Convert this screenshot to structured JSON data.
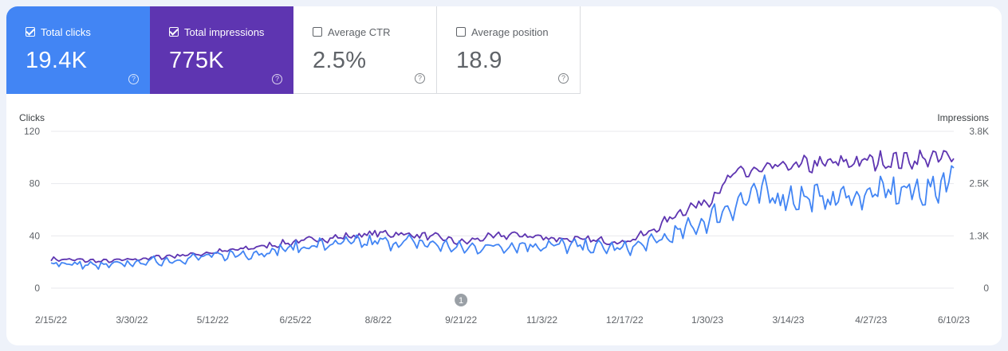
{
  "metrics": [
    {
      "label": "Total clicks",
      "value": "19.4K",
      "checked": true,
      "style": "on-clicks"
    },
    {
      "label": "Total impressions",
      "value": "775K",
      "checked": true,
      "style": "on-impr"
    },
    {
      "label": "Average CTR",
      "value": "2.5%",
      "checked": false,
      "style": "off"
    },
    {
      "label": "Average position",
      "value": "18.9",
      "checked": false,
      "style": "off"
    }
  ],
  "help_glyph": "?",
  "colors": {
    "clicks": "#4285f4",
    "impressions": "#5e35b1"
  },
  "chart_data": {
    "type": "line",
    "x_range": [
      "2/15/22",
      "6/10/23"
    ],
    "x_tick_labels": [
      "2/15/22",
      "3/30/22",
      "5/12/22",
      "6/25/22",
      "8/8/22",
      "9/21/22",
      "11/3/22",
      "12/17/22",
      "1/30/23",
      "3/14/23",
      "4/27/23",
      "6/10/23"
    ],
    "left_axis": {
      "label": "Clicks",
      "ticks": [
        "0",
        "40",
        "80",
        "120"
      ],
      "range": [
        0,
        120
      ]
    },
    "right_axis": {
      "label": "Impressions",
      "ticks": [
        "0",
        "1.3K",
        "2.5K",
        "3.8K"
      ],
      "range": [
        0,
        3800
      ]
    },
    "annotation": {
      "label": "1",
      "date": "9/21/22"
    },
    "grid": true,
    "series": [
      {
        "name": "Clicks",
        "axis": "left",
        "color": "#4285f4",
        "dates": [
          "2/15/22",
          "3/1/22",
          "3/15/22",
          "3/30/22",
          "4/15/22",
          "5/1/22",
          "5/12/22",
          "5/25/22",
          "6/10/22",
          "6/25/22",
          "7/10/22",
          "7/25/22",
          "8/8/22",
          "8/25/22",
          "9/10/22",
          "9/21/22",
          "10/5/22",
          "10/20/22",
          "11/3/22",
          "11/20/22",
          "12/5/22",
          "12/17/22",
          "1/1/23",
          "1/15/23",
          "1/30/23",
          "2/15/23",
          "3/1/23",
          "3/14/23",
          "4/1/23",
          "4/15/23",
          "4/27/23",
          "5/15/23",
          "6/1/23",
          "6/10/23"
        ],
        "values": [
          20,
          18,
          17,
          19,
          21,
          23,
          24,
          26,
          28,
          31,
          33,
          34,
          35,
          35,
          33,
          30,
          32,
          33,
          33,
          32,
          31,
          30,
          35,
          42,
          52,
          66,
          72,
          70,
          68,
          70,
          72,
          74,
          75,
          92
        ]
      },
      {
        "name": "Impressions",
        "axis": "right",
        "color": "#5e35b1",
        "dates": [
          "2/15/22",
          "3/1/22",
          "3/15/22",
          "3/30/22",
          "4/15/22",
          "5/1/22",
          "5/12/22",
          "5/25/22",
          "6/10/22",
          "6/25/22",
          "7/10/22",
          "7/25/22",
          "8/8/22",
          "8/25/22",
          "9/10/22",
          "9/21/22",
          "10/5/22",
          "10/20/22",
          "11/3/22",
          "11/20/22",
          "12/5/22",
          "12/17/22",
          "1/1/23",
          "1/15/23",
          "1/30/23",
          "2/15/23",
          "3/1/23",
          "3/14/23",
          "4/1/23",
          "4/15/23",
          "4/27/23",
          "5/15/23",
          "6/1/23",
          "6/10/23"
        ],
        "values": [
          700,
          680,
          650,
          690,
          760,
          820,
          860,
          930,
          1030,
          1120,
          1200,
          1260,
          1330,
          1300,
          1220,
          1100,
          1230,
          1300,
          1230,
          1180,
          1150,
          1120,
          1390,
          1850,
          2120,
          2800,
          2850,
          2950,
          3000,
          3050,
          3080,
          3100,
          3150,
          3140
        ]
      }
    ]
  }
}
